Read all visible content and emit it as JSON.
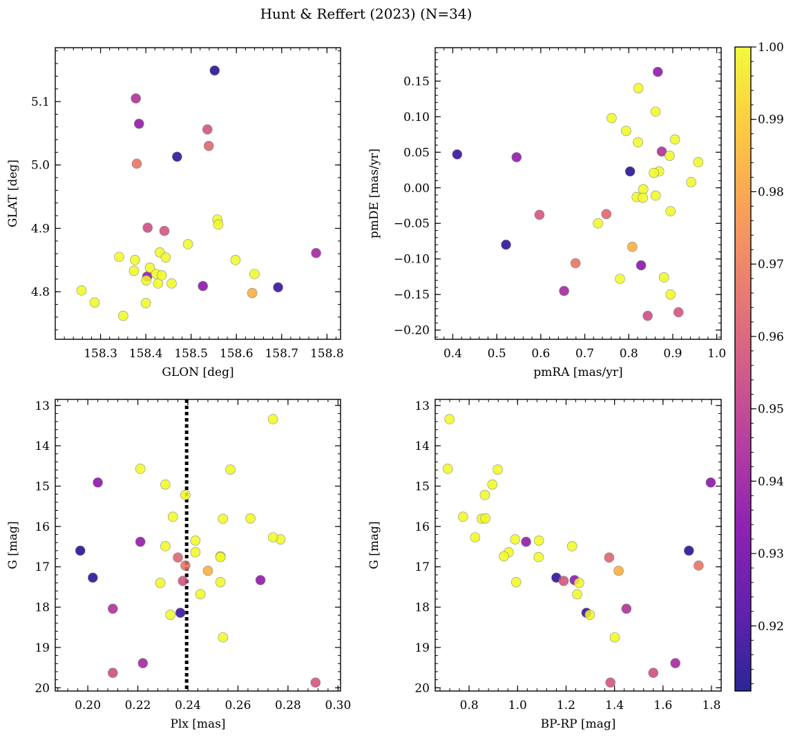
{
  "figure": {
    "title": "Hunt & Reffert (2023) (N=34)"
  },
  "colorbar": {
    "range": [
      0.911,
      1.0
    ],
    "ticks": [
      "0.92",
      "0.93",
      "0.94",
      "0.95",
      "0.96",
      "0.97",
      "0.98",
      "0.99",
      "1.00"
    ],
    "colormap": "plasma"
  },
  "chart_data": [
    {
      "type": "scatter",
      "xlabel": "GLON [deg]",
      "ylabel": "GLAT [deg]",
      "xlim": [
        158.2,
        158.83
      ],
      "ylim": [
        4.725,
        5.185
      ],
      "xticks": [
        "158.3",
        "158.4",
        "158.5",
        "158.6",
        "158.7",
        "158.8"
      ],
      "yticks": [
        "4.8",
        "4.9",
        "5.0",
        "5.1"
      ],
      "vlines": []
    },
    {
      "type": "scatter",
      "xlabel": "pmRA [mas/yr]",
      "ylabel": "pmDE [mas/yr]",
      "xlim": [
        0.36,
        1.01
      ],
      "ylim": [
        -0.213,
        0.197
      ],
      "xticks": [
        "0.4",
        "0.5",
        "0.6",
        "0.7",
        "0.8",
        "0.9",
        "1.0"
      ],
      "yticks": [
        "−0.20",
        "−0.15",
        "−0.10",
        "−0.05",
        "0.00",
        "0.05",
        "0.10",
        "0.15"
      ],
      "vlines": []
    },
    {
      "type": "scatter",
      "xlabel": "Plx [mas]",
      "ylabel": "G [mag]",
      "xlim": [
        0.187,
        0.301
      ],
      "ylim": [
        20.08,
        12.85
      ],
      "xticks": [
        "0.20",
        "0.22",
        "0.24",
        "0.26",
        "0.28",
        "0.30"
      ],
      "yticks": [
        "13",
        "14",
        "15",
        "16",
        "17",
        "18",
        "19",
        "20"
      ],
      "vlines": [
        0.2395
      ]
    },
    {
      "type": "scatter",
      "xlabel": "BP-RP [mag]",
      "ylabel": "G [mag]",
      "xlim": [
        0.66,
        1.84
      ],
      "ylim": [
        20.08,
        12.85
      ],
      "xticks": [
        "0.8",
        "1.0",
        "1.2",
        "1.4",
        "1.6",
        "1.8"
      ],
      "yticks": [
        "13",
        "14",
        "15",
        "16",
        "17",
        "18",
        "19",
        "20"
      ],
      "vlines": []
    }
  ],
  "stars": [
    {
      "glon": 158.552,
      "glat": 5.149,
      "pmra": 0.803,
      "pmde": 0.023,
      "plx": 0.197,
      "g": 16.6,
      "bprp": 1.707,
      "prob": 0.913
    },
    {
      "glon": 158.469,
      "glat": 5.013,
      "pmra": 0.521,
      "pmde": -0.08,
      "plx": 0.202,
      "g": 17.27,
      "bprp": 1.16,
      "prob": 0.915
    },
    {
      "glon": 158.692,
      "glat": 4.807,
      "pmra": 0.41,
      "pmde": 0.047,
      "plx": 0.237,
      "g": 18.14,
      "bprp": 1.284,
      "prob": 0.917
    },
    {
      "glon": 158.526,
      "glat": 4.809,
      "pmra": 0.828,
      "pmde": -0.109,
      "plx": 0.204,
      "g": 14.91,
      "bprp": 1.797,
      "prob": 0.935
    },
    {
      "glon": 158.385,
      "glat": 5.065,
      "pmra": 0.545,
      "pmde": 0.043,
      "plx": 0.269,
      "g": 17.33,
      "bprp": 1.235,
      "prob": 0.937
    },
    {
      "glon": 158.403,
      "glat": 4.824,
      "pmra": 0.866,
      "pmde": 0.163,
      "plx": 0.221,
      "g": 16.38,
      "bprp": 1.035,
      "prob": 0.937
    },
    {
      "glon": 158.776,
      "glat": 4.861,
      "pmra": 0.653,
      "pmde": -0.145,
      "plx": 0.222,
      "g": 19.39,
      "bprp": 1.651,
      "prob": 0.942
    },
    {
      "glon": 158.378,
      "glat": 5.105,
      "pmra": 0.875,
      "pmde": 0.051,
      "plx": 0.21,
      "g": 18.04,
      "bprp": 1.449,
      "prob": 0.945
    },
    {
      "glon": 158.404,
      "glat": 4.901,
      "pmra": 0.843,
      "pmde": -0.18,
      "plx": 0.21,
      "g": 19.63,
      "bprp": 1.56,
      "prob": 0.955
    },
    {
      "glon": 158.441,
      "glat": 4.896,
      "pmra": 0.913,
      "pmde": -0.175,
      "plx": 0.291,
      "g": 19.87,
      "bprp": 1.383,
      "prob": 0.957
    },
    {
      "glon": 158.536,
      "glat": 5.056,
      "pmra": 0.597,
      "pmde": -0.038,
      "plx": 0.238,
      "g": 17.35,
      "bprp": 1.19,
      "prob": 0.957
    },
    {
      "glon": 158.539,
      "glat": 5.03,
      "pmra": 0.749,
      "pmde": -0.037,
      "plx": 0.236,
      "g": 16.77,
      "bprp": 1.378,
      "prob": 0.962
    },
    {
      "glon": 158.38,
      "glat": 5.002,
      "pmra": 0.679,
      "pmde": -0.106,
      "plx": 0.239,
      "g": 16.97,
      "bprp": 1.747,
      "prob": 0.967
    },
    {
      "glon": 158.635,
      "glat": 4.798,
      "pmra": 0.808,
      "pmde": -0.083,
      "plx": 0.248,
      "g": 17.1,
      "bprp": 1.417,
      "prob": 0.983
    },
    {
      "glon": 158.258,
      "glat": 4.802,
      "pmra": 0.822,
      "pmde": 0.14,
      "plx": 0.274,
      "g": 13.34,
      "bprp": 0.719,
      "prob": 1.0
    },
    {
      "glon": 158.287,
      "glat": 4.783,
      "pmra": 0.861,
      "pmde": 0.107,
      "plx": 0.221,
      "g": 14.57,
      "bprp": 0.712,
      "prob": 1.0
    },
    {
      "glon": 158.341,
      "glat": 4.855,
      "pmra": 0.761,
      "pmde": 0.098,
      "plx": 0.257,
      "g": 14.59,
      "bprp": 0.918,
      "prob": 1.0
    },
    {
      "glon": 158.35,
      "glat": 4.762,
      "pmra": 0.794,
      "pmde": 0.08,
      "plx": 0.231,
      "g": 14.96,
      "bprp": 0.896,
      "prob": 1.0
    },
    {
      "glon": 158.374,
      "glat": 4.833,
      "pmra": 0.905,
      "pmde": 0.068,
      "plx": 0.239,
      "g": 15.22,
      "bprp": 0.865,
      "prob": 1.0
    },
    {
      "glon": 158.376,
      "glat": 4.85,
      "pmra": 0.821,
      "pmde": 0.064,
      "plx": 0.234,
      "g": 15.76,
      "bprp": 0.775,
      "prob": 1.0
    },
    {
      "glon": 158.4,
      "glat": 4.782,
      "pmra": 0.893,
      "pmde": 0.045,
      "plx": 0.254,
      "g": 15.81,
      "bprp": 0.852,
      "prob": 1.0
    },
    {
      "glon": 158.401,
      "glat": 4.818,
      "pmra": 0.958,
      "pmde": 0.036,
      "plx": 0.265,
      "g": 15.8,
      "bprp": 0.867,
      "prob": 1.0
    },
    {
      "glon": 158.409,
      "glat": 4.838,
      "pmra": 0.869,
      "pmde": 0.023,
      "plx": 0.277,
      "g": 16.32,
      "bprp": 0.99,
      "prob": 1.0
    },
    {
      "glon": 158.423,
      "glat": 4.828,
      "pmra": 0.857,
      "pmde": 0.021,
      "plx": 0.274,
      "g": 16.27,
      "bprp": 0.825,
      "prob": 1.0
    },
    {
      "glon": 158.427,
      "glat": 4.813,
      "pmra": 0.942,
      "pmde": 0.008,
      "plx": 0.243,
      "g": 16.35,
      "bprp": 1.088,
      "prob": 1.0
    },
    {
      "glon": 158.431,
      "glat": 4.862,
      "pmra": 0.833,
      "pmde": -0.002,
      "plx": 0.243,
      "g": 16.64,
      "bprp": 0.963,
      "prob": 1.0
    },
    {
      "glon": 158.435,
      "glat": 4.826,
      "pmra": 0.818,
      "pmde": -0.013,
      "plx": 0.231,
      "g": 16.49,
      "bprp": 1.225,
      "prob": 1.0
    },
    {
      "glon": 158.444,
      "glat": 4.854,
      "pmra": 0.861,
      "pmde": -0.011,
      "plx": 0.253,
      "g": 16.74,
      "bprp": 0.944,
      "prob": 1.0
    },
    {
      "glon": 158.457,
      "glat": 4.813,
      "pmra": 0.832,
      "pmde": -0.014,
      "plx": 0.253,
      "g": 16.76,
      "bprp": 1.087,
      "prob": 1.0
    },
    {
      "glon": 158.493,
      "glat": 4.875,
      "pmra": 0.895,
      "pmde": -0.033,
      "plx": 0.229,
      "g": 17.4,
      "bprp": 1.254,
      "prob": 1.0
    },
    {
      "glon": 158.558,
      "glat": 4.914,
      "pmra": 0.73,
      "pmde": -0.05,
      "plx": 0.253,
      "g": 17.38,
      "bprp": 0.994,
      "prob": 1.0
    },
    {
      "glon": 158.56,
      "glat": 4.906,
      "pmra": 0.78,
      "pmde": -0.128,
      "plx": 0.245,
      "g": 17.68,
      "bprp": 1.246,
      "prob": 1.0
    },
    {
      "glon": 158.598,
      "glat": 4.85,
      "pmra": 0.88,
      "pmde": -0.126,
      "plx": 0.233,
      "g": 18.19,
      "bprp": 1.298,
      "prob": 1.0
    },
    {
      "glon": 158.64,
      "glat": 4.828,
      "pmra": 0.895,
      "pmde": -0.15,
      "plx": 0.254,
      "g": 18.75,
      "bprp": 1.401,
      "prob": 1.0
    }
  ]
}
